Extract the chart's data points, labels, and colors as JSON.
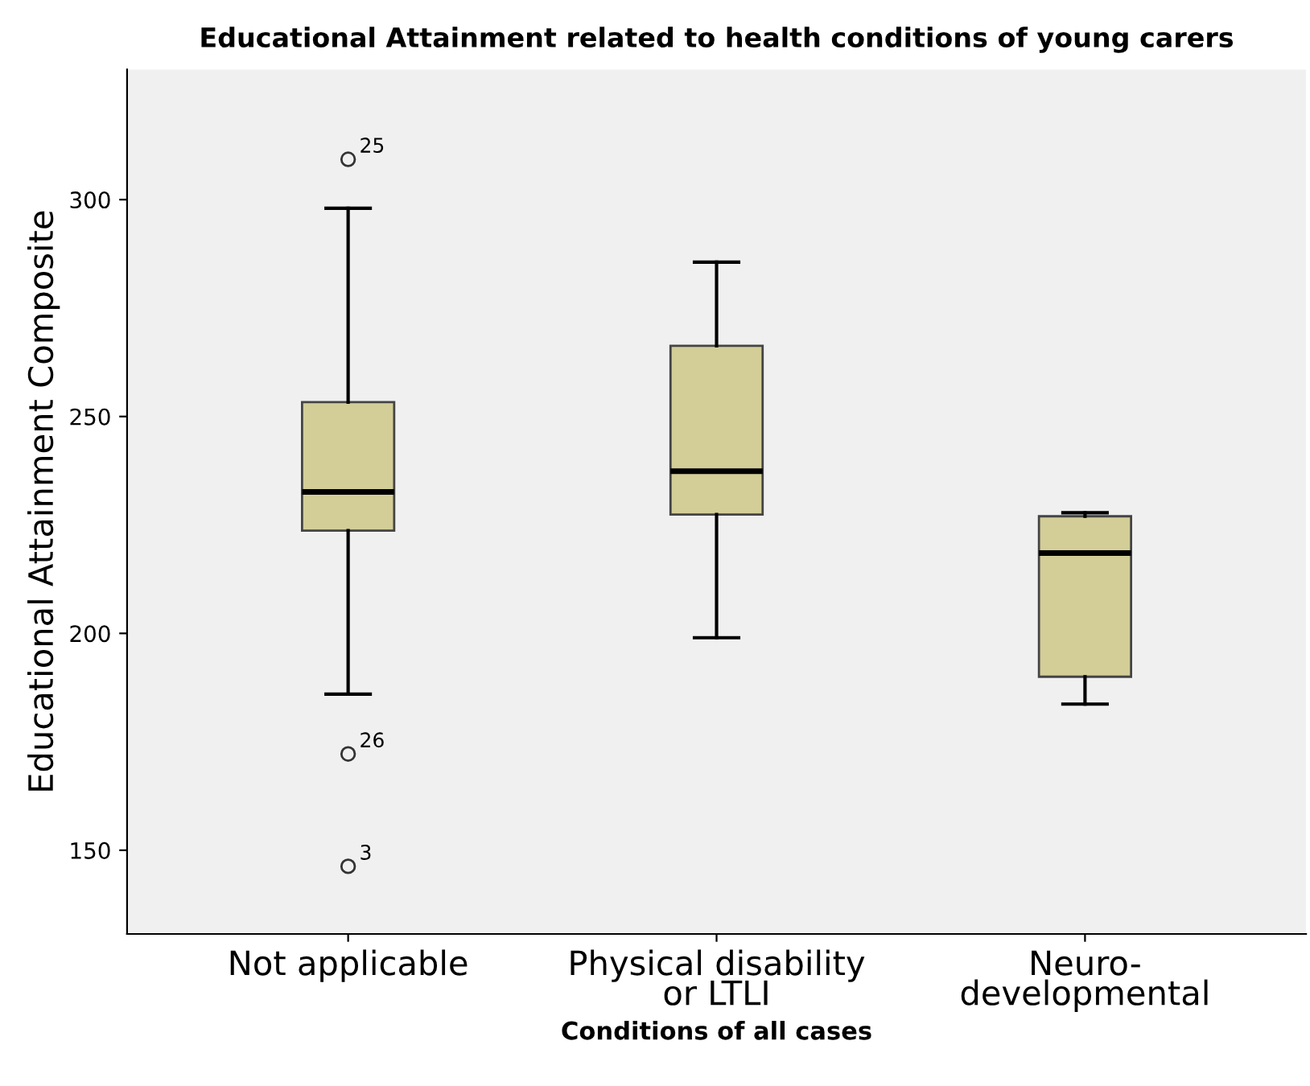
{
  "chart_data": {
    "type": "box",
    "title": "Educational Attainment related to health conditions of young carers",
    "xlabel": "Conditions of all cases",
    "ylabel": "Educational Attainment Composite",
    "categories": [
      "Not applicable",
      "Physical disability\nor LTLI",
      "Neuro-\ndevelopmental"
    ],
    "color": "#d3ce97",
    "boxes": [
      {
        "low": 186,
        "q1": 223.7,
        "median": 232.6,
        "q3": 253.3,
        "high": 298,
        "outliers": [
          309.3,
          172.2,
          146.3
        ]
      },
      {
        "low": 199,
        "q1": 227.4,
        "median": 237.4,
        "q3": 266.3,
        "high": 285.6
      },
      {
        "low": 183.7,
        "q1": 190,
        "median": 218.5,
        "q3": 227,
        "high": 227.8
      }
    ],
    "annotations": [
      "25",
      "26",
      "3"
    ],
    "ylim": [
      130.7,
      330
    ],
    "yticks": [
      150,
      200,
      250,
      300
    ],
    "grid": false
  }
}
